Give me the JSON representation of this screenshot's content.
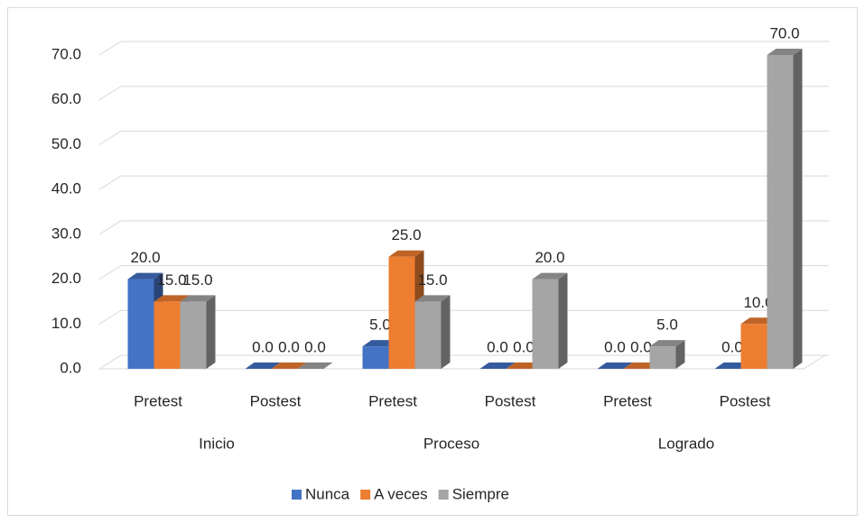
{
  "chart_data": {
    "type": "bar3d",
    "categories": [
      "Pretest",
      "Postest",
      "Pretest",
      "Postest",
      "Pretest",
      "Postest"
    ],
    "groups": [
      "Inicio",
      "Proceso",
      "Logrado"
    ],
    "series": [
      {
        "name": "Nunca",
        "color": "#4472c4",
        "values": [
          20,
          0,
          5,
          0,
          0,
          0
        ],
        "value_labels": [
          "20.0",
          "0.0",
          "5.0",
          "0.0",
          "0.0",
          "0.0"
        ]
      },
      {
        "name": "A veces",
        "color": "#ed7d31",
        "values": [
          15,
          0,
          25,
          0,
          0,
          10
        ],
        "value_labels": [
          "15.0",
          "0.0",
          "25.0",
          "0.0",
          "0.0",
          "10.0"
        ]
      },
      {
        "name": "Siempre",
        "color": "#a5a5a5",
        "values": [
          15,
          0,
          15,
          20,
          5,
          70
        ],
        "value_labels": [
          "15.0",
          "0.0",
          "15.0",
          "20.0",
          "5.0",
          "70.0"
        ]
      }
    ],
    "ylim": [
      0,
      70
    ],
    "yticks": [
      {
        "value": 0,
        "label": "0.0"
      },
      {
        "value": 10,
        "label": "10.0"
      },
      {
        "value": 20,
        "label": "20.0"
      },
      {
        "value": 30,
        "label": "30.0"
      },
      {
        "value": 40,
        "label": "40.0"
      },
      {
        "value": 50,
        "label": "50.0"
      },
      {
        "value": 60,
        "label": "60.0"
      },
      {
        "value": 70,
        "label": "70.0"
      }
    ],
    "grid": true,
    "legend": "bottom"
  }
}
